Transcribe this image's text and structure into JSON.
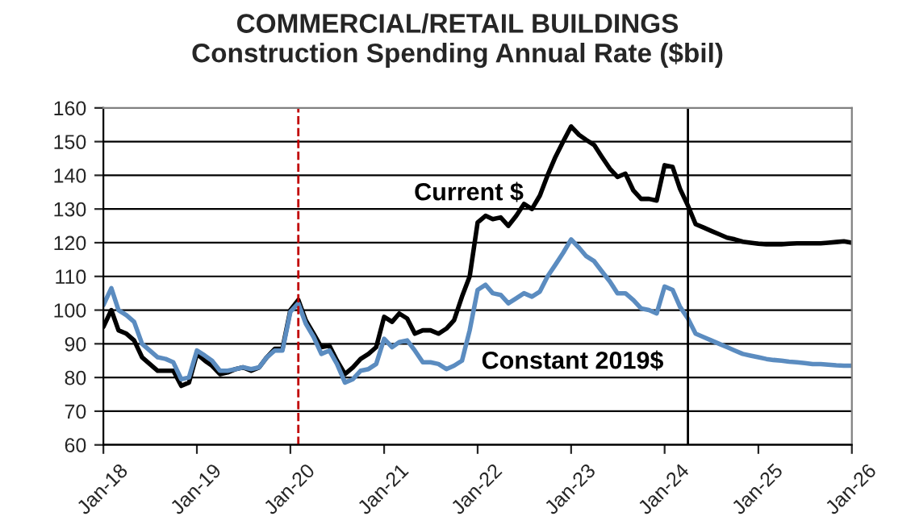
{
  "chart_data": {
    "type": "line",
    "title": "COMMERCIAL/RETAIL BUILDINGS\nConstruction Spending Annual Rate ($bil)",
    "x": [
      "2018-01",
      "2018-02",
      "2018-03",
      "2018-04",
      "2018-05",
      "2018-06",
      "2018-07",
      "2018-08",
      "2018-09",
      "2018-10",
      "2018-11",
      "2018-12",
      "2019-01",
      "2019-02",
      "2019-03",
      "2019-04",
      "2019-05",
      "2019-06",
      "2019-07",
      "2019-08",
      "2019-09",
      "2019-10",
      "2019-11",
      "2019-12",
      "2020-01",
      "2020-02",
      "2020-03",
      "2020-04",
      "2020-05",
      "2020-06",
      "2020-07",
      "2020-08",
      "2020-09",
      "2020-10",
      "2020-11",
      "2020-12",
      "2021-01",
      "2021-02",
      "2021-03",
      "2021-04",
      "2021-05",
      "2021-06",
      "2021-07",
      "2021-08",
      "2021-09",
      "2021-10",
      "2021-11",
      "2021-12",
      "2022-01",
      "2022-02",
      "2022-03",
      "2022-04",
      "2022-05",
      "2022-06",
      "2022-07",
      "2022-08",
      "2022-09",
      "2022-10",
      "2022-11",
      "2022-12",
      "2023-01",
      "2023-02",
      "2023-03",
      "2023-04",
      "2023-05",
      "2023-06",
      "2023-07",
      "2023-08",
      "2023-09",
      "2023-10",
      "2023-11",
      "2023-12",
      "2024-01",
      "2024-02",
      "2024-03",
      "2024-04",
      "2024-05",
      "2024-06",
      "2024-07",
      "2024-08",
      "2024-09",
      "2024-10",
      "2024-11",
      "2024-12",
      "2025-01",
      "2025-02",
      "2025-03",
      "2025-04",
      "2025-05",
      "2025-06",
      "2025-07",
      "2025-08",
      "2025-09",
      "2025-10",
      "2025-11",
      "2025-12",
      "2026-01"
    ],
    "series": [
      {
        "name": "Current $",
        "color": "#000000",
        "values": [
          95,
          100,
          94,
          93,
          91,
          86,
          84,
          82,
          82,
          82,
          77.5,
          78.5,
          87,
          85,
          83.5,
          81,
          81.5,
          82.5,
          83,
          82,
          83,
          86,
          88.5,
          88.5,
          100,
          103,
          97,
          93,
          89,
          89.5,
          85,
          81,
          83,
          85.5,
          87,
          89,
          98,
          96.5,
          99,
          97.5,
          93,
          94,
          94,
          93,
          94.5,
          97,
          104,
          110,
          126,
          128,
          127,
          127.5,
          125,
          128,
          131.5,
          130,
          134,
          140,
          145.5,
          150,
          154.5,
          152,
          150.5,
          149,
          145.5,
          142,
          139.5,
          140.5,
          135.5,
          133,
          133,
          132.5,
          143,
          142.5,
          136,
          131,
          125.5,
          124.5,
          123.5,
          122.5,
          121.5,
          121,
          120.3,
          120,
          119.7,
          119.5,
          119.5,
          119.5,
          119.7,
          119.8,
          119.8,
          119.8,
          119.8,
          120,
          120.2,
          120.4,
          120
        ]
      },
      {
        "name": "Constant 2019$",
        "color": "#5b8cc0",
        "values": [
          101.5,
          106.5,
          100,
          98.5,
          96.5,
          90,
          88,
          86,
          85.5,
          84.5,
          79.5,
          80,
          88,
          86.5,
          85,
          82,
          82,
          82.5,
          83,
          82.5,
          83,
          86,
          88,
          88,
          99.5,
          102,
          96,
          92,
          87,
          88,
          84,
          78.5,
          79.5,
          82,
          82.5,
          84,
          91.5,
          89,
          90.5,
          91,
          88,
          84.5,
          84.5,
          84,
          82.5,
          83.5,
          85,
          94,
          106,
          107.5,
          105,
          104.5,
          102,
          103.5,
          105,
          104,
          105.5,
          110,
          113.5,
          117,
          121,
          118.5,
          116,
          114.5,
          111.5,
          108.5,
          105,
          105,
          103,
          100.5,
          100,
          99,
          107,
          106,
          101,
          97.5,
          93,
          92,
          91,
          90,
          89,
          88,
          87,
          86.5,
          86,
          85.5,
          85.2,
          85,
          84.7,
          84.5,
          84.3,
          84,
          84,
          83.8,
          83.6,
          83.5,
          83.5
        ]
      }
    ],
    "xlim": [
      "2018-01",
      "2026-01"
    ],
    "xticks": [
      {
        "value": "2018-01",
        "label": "Jan-18"
      },
      {
        "value": "2019-01",
        "label": "Jan-19"
      },
      {
        "value": "2020-01",
        "label": "Jan-20"
      },
      {
        "value": "2021-01",
        "label": "Jan-21"
      },
      {
        "value": "2022-01",
        "label": "Jan-22"
      },
      {
        "value": "2023-01",
        "label": "Jan-23"
      },
      {
        "value": "2024-01",
        "label": "Jan-24"
      },
      {
        "value": "2025-01",
        "label": "Jan-25"
      },
      {
        "value": "2026-01",
        "label": "Jan-26"
      }
    ],
    "ylim": [
      60,
      160
    ],
    "yticks": [
      60,
      70,
      80,
      90,
      100,
      110,
      120,
      130,
      140,
      150,
      160
    ],
    "grid": "y",
    "legend": false,
    "line_style": "solid",
    "ref_lines": [
      {
        "axis": "x",
        "value": "2020-02",
        "color": "#c00000",
        "line_style": "dashed"
      },
      {
        "axis": "x",
        "value": "2024-04",
        "color": "#000000",
        "line_style": "solid"
      }
    ]
  }
}
